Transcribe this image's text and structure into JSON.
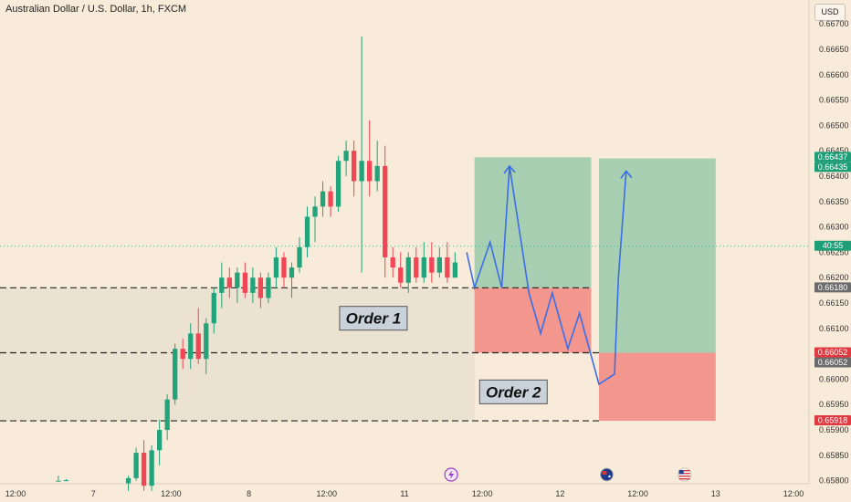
{
  "header": {
    "symbol_title": "Australian Dollar / U.S. Dollar, 1h, FXCM",
    "currency_label": "USD"
  },
  "chart_data": {
    "type": "candlestick",
    "ylim": [
      0.65794,
      0.66747
    ],
    "y_ticks": [
      0.667,
      0.6665,
      0.666,
      0.6655,
      0.665,
      0.6645,
      0.664,
      0.6635,
      0.663,
      0.6625,
      0.662,
      0.6615,
      0.661,
      0.6605,
      0.66,
      0.6595,
      0.659,
      0.6585,
      0.658
    ],
    "y_tick_labels": [
      "0.66700",
      "0.66650",
      "0.66600",
      "0.66550",
      "0.66500",
      "0.66450",
      "0.66400",
      "0.66350",
      "0.66300",
      "0.66250",
      "0.66200",
      "0.66150",
      "0.66100",
      "0.66050",
      "0.66000",
      "0.65950",
      "0.65900",
      "0.65850",
      "0.65800"
    ],
    "x_range": [
      0,
      104
    ],
    "x_ticks": [
      {
        "x": 2,
        "label": "12:00"
      },
      {
        "x": 12,
        "label": "7"
      },
      {
        "x": 22,
        "label": "12:00"
      },
      {
        "x": 32,
        "label": "8"
      },
      {
        "x": 42,
        "label": "12:00"
      },
      {
        "x": 52,
        "label": "11"
      },
      {
        "x": 62,
        "label": "12:00"
      },
      {
        "x": 72,
        "label": "12"
      },
      {
        "x": 82,
        "label": "12:00"
      },
      {
        "x": 92,
        "label": "13"
      },
      {
        "x": 102,
        "label": "12:00"
      }
    ],
    "candles": [
      {
        "x": 7.5,
        "o": 0.658,
        "h": 0.6581,
        "l": 0.658,
        "c": 0.658
      },
      {
        "x": 8.5,
        "o": 0.658,
        "h": 0.65803,
        "l": 0.658,
        "c": 0.65801
      },
      {
        "x": 16.5,
        "o": 0.65795,
        "h": 0.6581,
        "l": 0.6578,
        "c": 0.65805
      },
      {
        "x": 17.5,
        "o": 0.65805,
        "h": 0.65865,
        "l": 0.658,
        "c": 0.65855
      },
      {
        "x": 18.5,
        "o": 0.65855,
        "h": 0.6588,
        "l": 0.6578,
        "c": 0.6579
      },
      {
        "x": 19.5,
        "o": 0.6579,
        "h": 0.6587,
        "l": 0.6578,
        "c": 0.6586
      },
      {
        "x": 20.5,
        "o": 0.6586,
        "h": 0.6592,
        "l": 0.6583,
        "c": 0.659
      },
      {
        "x": 21.5,
        "o": 0.659,
        "h": 0.6597,
        "l": 0.6588,
        "c": 0.6596
      },
      {
        "x": 22.5,
        "o": 0.6596,
        "h": 0.6607,
        "l": 0.6595,
        "c": 0.6606
      },
      {
        "x": 23.5,
        "o": 0.6606,
        "h": 0.6608,
        "l": 0.6602,
        "c": 0.6604
      },
      {
        "x": 24.5,
        "o": 0.6604,
        "h": 0.6611,
        "l": 0.6602,
        "c": 0.6609
      },
      {
        "x": 25.5,
        "o": 0.6609,
        "h": 0.6614,
        "l": 0.6603,
        "c": 0.6604
      },
      {
        "x": 26.5,
        "o": 0.6604,
        "h": 0.6612,
        "l": 0.6601,
        "c": 0.6611
      },
      {
        "x": 27.5,
        "o": 0.6611,
        "h": 0.6618,
        "l": 0.6609,
        "c": 0.6617
      },
      {
        "x": 28.5,
        "o": 0.6617,
        "h": 0.6623,
        "l": 0.6614,
        "c": 0.662
      },
      {
        "x": 29.5,
        "o": 0.662,
        "h": 0.6622,
        "l": 0.6616,
        "c": 0.6618
      },
      {
        "x": 30.5,
        "o": 0.6618,
        "h": 0.6622,
        "l": 0.6615,
        "c": 0.6621
      },
      {
        "x": 31.5,
        "o": 0.6621,
        "h": 0.6623,
        "l": 0.6616,
        "c": 0.6617
      },
      {
        "x": 32.5,
        "o": 0.6617,
        "h": 0.6622,
        "l": 0.6615,
        "c": 0.662
      },
      {
        "x": 33.5,
        "o": 0.662,
        "h": 0.6621,
        "l": 0.6614,
        "c": 0.6616
      },
      {
        "x": 34.5,
        "o": 0.6616,
        "h": 0.6621,
        "l": 0.6615,
        "c": 0.662
      },
      {
        "x": 35.5,
        "o": 0.662,
        "h": 0.6626,
        "l": 0.6618,
        "c": 0.6624
      },
      {
        "x": 36.5,
        "o": 0.6624,
        "h": 0.6625,
        "l": 0.6618,
        "c": 0.662
      },
      {
        "x": 37.5,
        "o": 0.662,
        "h": 0.6623,
        "l": 0.6616,
        "c": 0.6622
      },
      {
        "x": 38.5,
        "o": 0.6622,
        "h": 0.6628,
        "l": 0.6621,
        "c": 0.6626
      },
      {
        "x": 39.5,
        "o": 0.6626,
        "h": 0.6634,
        "l": 0.6624,
        "c": 0.6632
      },
      {
        "x": 40.5,
        "o": 0.6632,
        "h": 0.6636,
        "l": 0.6627,
        "c": 0.6634
      },
      {
        "x": 41.5,
        "o": 0.6634,
        "h": 0.6639,
        "l": 0.6632,
        "c": 0.6637
      },
      {
        "x": 42.5,
        "o": 0.6637,
        "h": 0.6638,
        "l": 0.6632,
        "c": 0.6634
      },
      {
        "x": 43.5,
        "o": 0.6634,
        "h": 0.6644,
        "l": 0.6633,
        "c": 0.6643
      },
      {
        "x": 44.5,
        "o": 0.6643,
        "h": 0.6647,
        "l": 0.664,
        "c": 0.6645
      },
      {
        "x": 45.5,
        "o": 0.6645,
        "h": 0.6647,
        "l": 0.6636,
        "c": 0.6639
      },
      {
        "x": 46.5,
        "o": 0.6639,
        "h": 0.66675,
        "l": 0.6621,
        "c": 0.6643
      },
      {
        "x": 47.5,
        "o": 0.6643,
        "h": 0.6651,
        "l": 0.6636,
        "c": 0.6639
      },
      {
        "x": 48.5,
        "o": 0.6639,
        "h": 0.6647,
        "l": 0.6637,
        "c": 0.6642
      },
      {
        "x": 49.5,
        "o": 0.6642,
        "h": 0.6646,
        "l": 0.662,
        "c": 0.6624
      },
      {
        "x": 50.5,
        "o": 0.6624,
        "h": 0.6626,
        "l": 0.662,
        "c": 0.6622
      },
      {
        "x": 51.5,
        "o": 0.6622,
        "h": 0.6625,
        "l": 0.6618,
        "c": 0.6619
      },
      {
        "x": 52.5,
        "o": 0.6619,
        "h": 0.6625,
        "l": 0.6617,
        "c": 0.6624
      },
      {
        "x": 53.5,
        "o": 0.6624,
        "h": 0.6626,
        "l": 0.6619,
        "c": 0.662
      },
      {
        "x": 54.5,
        "o": 0.662,
        "h": 0.6627,
        "l": 0.6619,
        "c": 0.6624
      },
      {
        "x": 55.5,
        "o": 0.6624,
        "h": 0.6627,
        "l": 0.6619,
        "c": 0.6621
      },
      {
        "x": 56.5,
        "o": 0.6621,
        "h": 0.6626,
        "l": 0.662,
        "c": 0.6624
      },
      {
        "x": 57.5,
        "o": 0.6624,
        "h": 0.6627,
        "l": 0.6619,
        "c": 0.662
      },
      {
        "x": 58.5,
        "o": 0.662,
        "h": 0.6625,
        "l": 0.662,
        "c": 0.6623
      }
    ],
    "colors": {
      "bull": "#22a37b",
      "bear": "#f04655",
      "profit_zone": "#a4cdb0",
      "loss_zone": "#f1918a",
      "path": "#3a6ee8"
    },
    "levels": [
      0.6618,
      0.66052,
      0.65918
    ],
    "positions": [
      {
        "name": "Order 1",
        "x0": 61,
        "x1": 76,
        "entry": 0.6618,
        "target": 0.66437,
        "stop": 0.66052
      },
      {
        "name": "Order 2",
        "x0": 77,
        "x1": 92,
        "entry": 0.66052,
        "target": 0.66435,
        "stop": 0.65918
      }
    ],
    "annotations": [
      "Order 1",
      "Order 2"
    ],
    "price_badges": [
      {
        "price": 0.66437,
        "label": "0.66437",
        "color": "#1d9e75"
      },
      {
        "price": 0.66435,
        "label": "0.66435",
        "color": "#1d9e75"
      },
      {
        "price": 0.66262,
        "label": "40:55",
        "color": "#1d9e75"
      },
      {
        "price": 0.6618,
        "label": "0.66180",
        "color": "#6b6b6b"
      },
      {
        "price": 0.66052,
        "label": "0.66052",
        "color": "#e03a40"
      },
      {
        "price": 0.66052,
        "label": "0.66052",
        "color": "#6b6b6b"
      },
      {
        "price": 0.65918,
        "label": "0.65918",
        "color": "#e03a40"
      }
    ],
    "projected_path": [
      {
        "x": 60,
        "y": 0.6625
      },
      {
        "x": 61,
        "y": 0.6618
      },
      {
        "x": 63,
        "y": 0.6627
      },
      {
        "x": 64.5,
        "y": 0.6618
      },
      {
        "x": 65.5,
        "y": 0.6642
      },
      {
        "x": 68,
        "y": 0.6617
      },
      {
        "x": 69.5,
        "y": 0.6609
      },
      {
        "x": 71,
        "y": 0.6617
      },
      {
        "x": 73,
        "y": 0.6606
      },
      {
        "x": 74.5,
        "y": 0.6613
      },
      {
        "x": 77,
        "y": 0.6599
      },
      {
        "x": 79,
        "y": 0.6601
      },
      {
        "x": 79.5,
        "y": 0.662
      },
      {
        "x": 80.5,
        "y": 0.6641
      }
    ],
    "event_markers": [
      {
        "x": 58,
        "icon": "lightning-icon"
      },
      {
        "x": 78,
        "icon": "au-flag-icon"
      },
      {
        "x": 88,
        "icon": "us-flag-icon"
      }
    ]
  }
}
